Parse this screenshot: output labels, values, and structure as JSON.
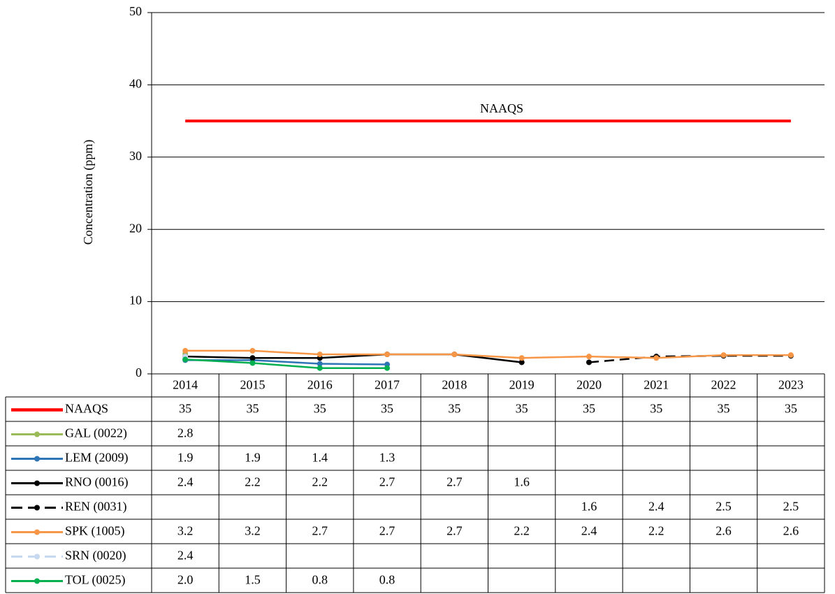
{
  "chart_data": {
    "type": "line",
    "y_label": "Concentration (ppm)",
    "annotations": [
      {
        "text": "NAAQS"
      }
    ],
    "categories": [
      "2014",
      "2015",
      "2016",
      "2017",
      "2018",
      "2019",
      "2020",
      "2021",
      "2022",
      "2023"
    ],
    "ylim": [
      0,
      50
    ],
    "yticks": [
      0,
      10,
      20,
      30,
      40,
      50
    ],
    "grid": true,
    "series": [
      {
        "name": "NAAQS",
        "color": "#ff0000",
        "marker": false,
        "dash": false,
        "width": 4,
        "values": [
          35,
          35,
          35,
          35,
          35,
          35,
          35,
          35,
          35,
          35
        ]
      },
      {
        "name": "GAL (0022)",
        "color": "#9bbb59",
        "marker": true,
        "dash": false,
        "width": 2.5,
        "values": [
          2.8,
          null,
          null,
          null,
          null,
          null,
          null,
          null,
          null,
          null
        ]
      },
      {
        "name": "LEM (2009)",
        "color": "#2e75b6",
        "marker": true,
        "dash": false,
        "width": 2.5,
        "values": [
          1.9,
          1.9,
          1.4,
          1.3,
          null,
          null,
          null,
          null,
          null,
          null
        ]
      },
      {
        "name": "RNO (0016)",
        "color": "#000000",
        "marker": true,
        "dash": false,
        "width": 2.5,
        "values": [
          2.4,
          2.2,
          2.2,
          2.7,
          2.7,
          1.6,
          null,
          null,
          null,
          null
        ]
      },
      {
        "name": "REN (0031)",
        "color": "#000000",
        "marker": true,
        "dash": true,
        "width": 2.5,
        "values": [
          null,
          null,
          null,
          null,
          null,
          null,
          1.6,
          2.4,
          2.5,
          2.5
        ]
      },
      {
        "name": "SPK (1005)",
        "color": "#f79646",
        "marker": true,
        "dash": false,
        "width": 2.5,
        "values": [
          3.2,
          3.2,
          2.7,
          2.7,
          2.7,
          2.2,
          2.4,
          2.2,
          2.6,
          2.6
        ]
      },
      {
        "name": "SRN (0020)",
        "color": "#c6d9f1",
        "marker": true,
        "dash": true,
        "width": 2.5,
        "values": [
          2.4,
          null,
          null,
          null,
          null,
          null,
          null,
          null,
          null,
          null
        ]
      },
      {
        "name": "TOL (0025)",
        "color": "#00b050",
        "marker": true,
        "dash": false,
        "width": 2.5,
        "values": [
          2.0,
          1.5,
          0.8,
          0.8,
          null,
          null,
          null,
          null,
          null,
          null
        ],
        "value_labels": [
          "2.0",
          "1.5",
          "0.8",
          "0.8",
          null,
          null,
          null,
          null,
          null,
          null
        ]
      }
    ]
  }
}
